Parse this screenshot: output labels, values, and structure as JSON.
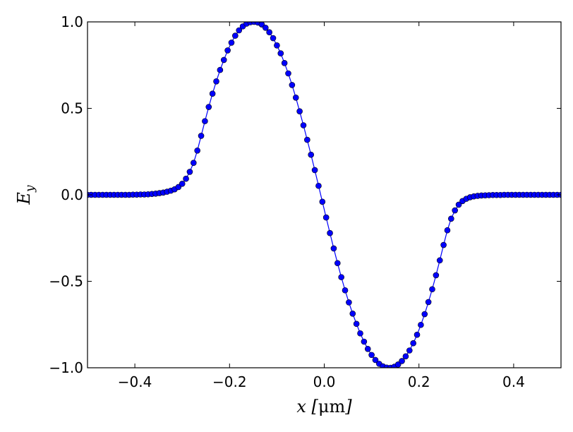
{
  "chart_data": {
    "type": "line",
    "title": "",
    "xlabel": "x [μm]",
    "ylabel": "E_y",
    "xlim": [
      -0.5,
      0.5
    ],
    "ylim": [
      -1.0,
      1.0
    ],
    "xticks": [
      -0.4,
      -0.2,
      0.0,
      0.2,
      0.4
    ],
    "xtick_labels": [
      "−0.4",
      "−0.2",
      "0.0",
      "0.2",
      "0.4"
    ],
    "yticks": [
      -1.0,
      -0.5,
      0.0,
      0.5,
      1.0
    ],
    "ytick_labels": [
      "−1.0",
      "−0.5",
      "0.0",
      "0.5",
      "1.0"
    ],
    "grid": false,
    "marker": "circle",
    "color": "#0000ff",
    "series": [
      {
        "x": [
          -0.5,
          -0.492,
          -0.484,
          -0.476,
          -0.468,
          -0.46,
          -0.452,
          -0.444,
          -0.436,
          -0.428,
          -0.42,
          -0.412,
          -0.404,
          -0.396,
          -0.388,
          -0.38,
          -0.372,
          -0.364,
          -0.356,
          -0.348,
          -0.34,
          -0.332,
          -0.324,
          -0.316,
          -0.308,
          -0.3,
          -0.292,
          -0.284,
          -0.276,
          -0.268,
          -0.26,
          -0.252,
          -0.244,
          -0.236,
          -0.228,
          -0.22,
          -0.212,
          -0.204,
          -0.196,
          -0.188,
          -0.18,
          -0.172,
          -0.164,
          -0.156,
          -0.148,
          -0.14,
          -0.132,
          -0.124,
          -0.116,
          -0.108,
          -0.1,
          -0.092,
          -0.084,
          -0.076,
          -0.068,
          -0.06,
          -0.052,
          -0.044,
          -0.036,
          -0.028,
          -0.02,
          -0.012,
          -0.004,
          0.004,
          0.012,
          0.02,
          0.028,
          0.036,
          0.044,
          0.052,
          0.06,
          0.068,
          0.076,
          0.084,
          0.092,
          0.1,
          0.108,
          0.116,
          0.124,
          0.132,
          0.14,
          0.148,
          0.156,
          0.164,
          0.172,
          0.18,
          0.188,
          0.196,
          0.204,
          0.212,
          0.22,
          0.228,
          0.236,
          0.244,
          0.252,
          0.26,
          0.268,
          0.276,
          0.284,
          0.292,
          0.3,
          0.308,
          0.316,
          0.324,
          0.332,
          0.34,
          0.348,
          0.356,
          0.364,
          0.372,
          0.38,
          0.388,
          0.396,
          0.404,
          0.412,
          0.42,
          0.428,
          0.436,
          0.444,
          0.452,
          0.46,
          0.468,
          0.476,
          0.484,
          0.492,
          0.5
        ],
        "y": [
          0.0,
          0.0,
          0.0,
          0.0,
          0.0,
          0.0,
          0.0,
          0.0,
          0.0,
          0.0,
          0.0,
          0.0,
          0.001,
          0.001,
          0.002,
          0.002,
          0.003,
          0.005,
          0.007,
          0.01,
          0.013,
          0.018,
          0.024,
          0.032,
          0.045,
          0.064,
          0.093,
          0.133,
          0.185,
          0.256,
          0.341,
          0.426,
          0.508,
          0.585,
          0.656,
          0.722,
          0.78,
          0.835,
          0.88,
          0.92,
          0.951,
          0.974,
          0.99,
          0.998,
          1.0,
          0.996,
          0.985,
          0.966,
          0.94,
          0.906,
          0.864,
          0.818,
          0.762,
          0.702,
          0.635,
          0.562,
          0.483,
          0.402,
          0.318,
          0.232,
          0.143,
          0.052,
          -0.04,
          -0.131,
          -0.221,
          -0.31,
          -0.395,
          -0.476,
          -0.552,
          -0.622,
          -0.687,
          -0.746,
          -0.801,
          -0.849,
          -0.891,
          -0.926,
          -0.955,
          -0.977,
          -0.992,
          -0.999,
          -1.0,
          -0.994,
          -0.981,
          -0.961,
          -0.934,
          -0.9,
          -0.858,
          -0.809,
          -0.752,
          -0.69,
          -0.62,
          -0.546,
          -0.465,
          -0.379,
          -0.29,
          -0.205,
          -0.138,
          -0.09,
          -0.057,
          -0.036,
          -0.023,
          -0.014,
          -0.009,
          -0.006,
          -0.004,
          -0.003,
          -0.002,
          -0.001,
          -0.001,
          -0.001,
          0.0,
          0.0,
          0.0,
          0.0,
          0.0,
          0.0,
          0.0,
          0.0,
          0.0,
          0.0,
          0.0,
          0.0,
          0.0,
          0.0,
          0.0,
          0.0
        ]
      }
    ]
  }
}
